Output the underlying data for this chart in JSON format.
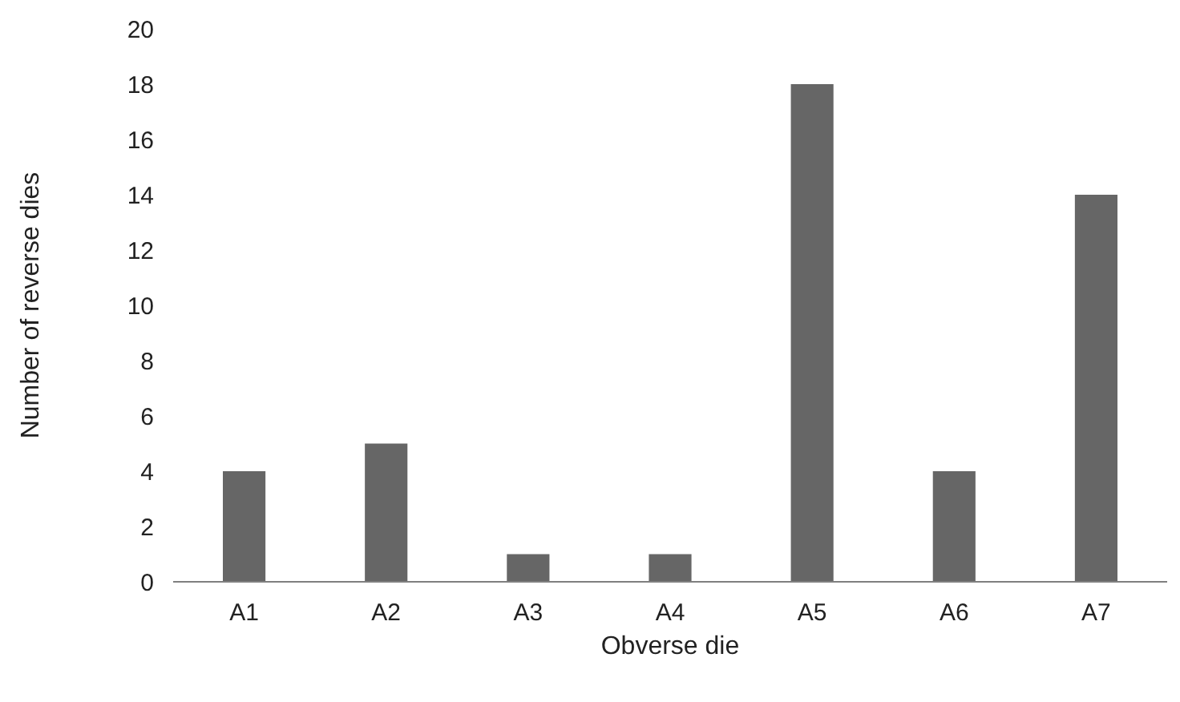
{
  "chart_data": {
    "type": "bar",
    "xlabel": "Obverse die",
    "ylabel": "Number of reverse dies",
    "categories": [
      "A1",
      "A2",
      "A3",
      "A4",
      "A5",
      "A6",
      "A7"
    ],
    "values": [
      4,
      5,
      1,
      1,
      18,
      4,
      14
    ],
    "color": "#666666",
    "ylim": [
      0,
      20
    ],
    "yticks": [
      0,
      2,
      4,
      6,
      8,
      10,
      12,
      14,
      16,
      18,
      20
    ],
    "grid": false
  }
}
